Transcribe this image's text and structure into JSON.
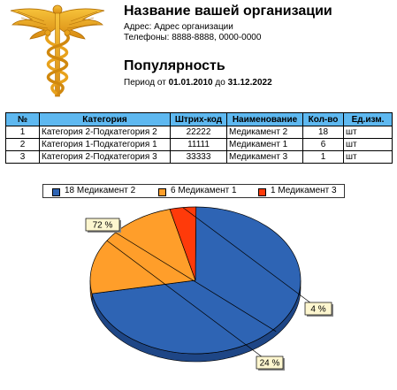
{
  "header": {
    "org_name": "Название вашей организации",
    "address": "Адрес: Адрес организации",
    "phones": "Телефоны: 8888-8888, 0000-0000",
    "report_title": "Популярность",
    "period_prefix": "Период от ",
    "period_from": "01.01.2010",
    "period_mid": " до ",
    "period_to": "31.12.2022"
  },
  "table": {
    "columns": [
      "№",
      "Категория",
      "Штрих-код",
      "Наименование",
      "Кол-во",
      "Ед.изм."
    ],
    "rows": [
      [
        "1",
        "Категория 2-Подкатегория 2",
        "22222",
        "Медикамент 2",
        "18",
        "шт"
      ],
      [
        "2",
        "Категория 1-Подкатегория 1",
        "11111",
        "Медикамент 1",
        "6",
        "шт"
      ],
      [
        "3",
        "Категория 2-Подкатегория 3",
        "33333",
        "Медикамент 3",
        "1",
        "шт"
      ]
    ]
  },
  "legend": {
    "items": [
      "18 Медикамент 2",
      "6 Медикамент 1",
      "1 Медикамент 3"
    ]
  },
  "colors": {
    "header_fill": "#5eb8f0",
    "series": [
      "#2e64b4",
      "#ff9e2a",
      "#ff3a0a"
    ],
    "series_side": [
      "#1e4686",
      "#c87418",
      "#c02800"
    ],
    "callout_fill": "#fdf6cf",
    "logo_gold": "#e8a21c"
  },
  "chart_data": {
    "type": "pie",
    "categories": [
      "Медикамент 2",
      "Медикамент 1",
      "Медикамент 3"
    ],
    "values": [
      18,
      6,
      1
    ],
    "data_labels": [
      "72 %",
      "24 %",
      "4 %"
    ],
    "legend_labels": [
      "18 Медикамент 2",
      "6 Медикамент 1",
      "1 Медикамент 3"
    ],
    "legend_position": "top"
  }
}
